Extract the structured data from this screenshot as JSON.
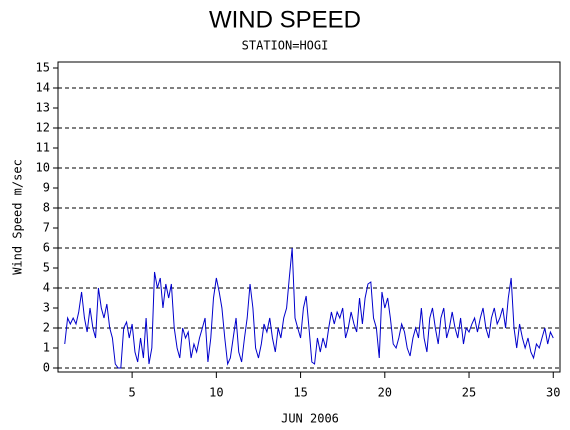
{
  "chart_data": {
    "type": "line",
    "title": "WIND SPEED",
    "subtitle": "STATION=HOGI",
    "x_label": "JUN 2006",
    "y_label": "Wind Speed m/sec",
    "xlim": [
      0.6,
      30.4
    ],
    "xticks": [
      5,
      10,
      15,
      20,
      25,
      30
    ],
    "ylim": [
      -0.2,
      15.3
    ],
    "yticks": [
      0,
      1,
      2,
      3,
      4,
      5,
      6,
      7,
      8,
      9,
      10,
      11,
      12,
      13,
      14,
      15
    ],
    "grid_lines": [
      0,
      2,
      4,
      6,
      8,
      10,
      12,
      14
    ],
    "series": [
      {
        "name": "Wind Speed",
        "color": "#0000cc",
        "x": [
          1,
          1.17,
          1.33,
          1.5,
          1.67,
          1.83,
          2,
          2.17,
          2.33,
          2.5,
          2.67,
          2.83,
          3,
          3.17,
          3.33,
          3.5,
          3.67,
          3.83,
          4,
          4.17,
          4.33,
          4.5,
          4.67,
          4.83,
          5,
          5.17,
          5.33,
          5.5,
          5.67,
          5.83,
          6,
          6.17,
          6.33,
          6.5,
          6.67,
          6.83,
          7,
          7.17,
          7.33,
          7.5,
          7.67,
          7.83,
          8,
          8.17,
          8.33,
          8.5,
          8.67,
          8.83,
          9,
          9.17,
          9.33,
          9.5,
          9.67,
          9.83,
          10,
          10.17,
          10.33,
          10.5,
          10.67,
          10.83,
          11,
          11.17,
          11.33,
          11.5,
          11.67,
          11.83,
          12,
          12.17,
          12.33,
          12.5,
          12.67,
          12.83,
          13,
          13.17,
          13.33,
          13.5,
          13.67,
          13.83,
          14,
          14.17,
          14.33,
          14.5,
          14.67,
          14.83,
          15,
          15.17,
          15.33,
          15.5,
          15.67,
          15.83,
          16,
          16.17,
          16.33,
          16.5,
          16.67,
          16.83,
          17,
          17.17,
          17.33,
          17.5,
          17.67,
          17.83,
          18,
          18.17,
          18.33,
          18.5,
          18.67,
          18.83,
          19,
          19.17,
          19.33,
          19.5,
          19.67,
          19.83,
          20,
          20.17,
          20.33,
          20.5,
          20.67,
          20.83,
          21,
          21.17,
          21.33,
          21.5,
          21.67,
          21.83,
          22,
          22.17,
          22.33,
          22.5,
          22.67,
          22.83,
          23,
          23.17,
          23.33,
          23.5,
          23.67,
          23.83,
          24,
          24.17,
          24.33,
          24.5,
          24.67,
          24.83,
          25,
          25.17,
          25.33,
          25.5,
          25.67,
          25.83,
          26,
          26.17,
          26.33,
          26.5,
          26.67,
          26.83,
          27,
          27.17,
          27.33,
          27.5,
          27.67,
          27.83,
          28,
          28.17,
          28.33,
          28.5,
          28.67,
          28.83,
          29,
          29.17,
          29.33,
          29.5,
          29.67,
          29.83,
          30
        ],
        "values": [
          1.2,
          2.5,
          2.2,
          2.5,
          2.2,
          2.8,
          3.8,
          2.5,
          1.8,
          3.0,
          2.0,
          1.5,
          4.0,
          3.0,
          2.5,
          3.2,
          2.0,
          1.5,
          0.2,
          0.0,
          0.0,
          2.0,
          2.3,
          1.5,
          2.2,
          0.8,
          0.3,
          1.5,
          0.5,
          2.5,
          0.2,
          1.0,
          4.8,
          4.0,
          4.5,
          3.0,
          4.2,
          3.5,
          4.2,
          2.0,
          1.0,
          0.5,
          2.0,
          1.5,
          1.8,
          0.5,
          1.2,
          0.8,
          1.5,
          2.0,
          2.5,
          0.3,
          1.5,
          3.5,
          4.5,
          3.8,
          3.0,
          1.5,
          0.2,
          0.5,
          1.5,
          2.5,
          0.8,
          0.3,
          1.5,
          2.5,
          4.2,
          3.0,
          1.0,
          0.5,
          1.2,
          2.2,
          1.8,
          2.5,
          1.5,
          0.8,
          2.0,
          1.5,
          2.5,
          3.0,
          4.5,
          6.0,
          2.5,
          2.0,
          1.5,
          3.0,
          3.6,
          2.0,
          0.3,
          0.2,
          1.5,
          0.8,
          1.5,
          1.0,
          2.0,
          2.8,
          2.2,
          2.8,
          2.5,
          3.0,
          1.5,
          2.0,
          2.8,
          2.2,
          1.8,
          3.5,
          2.2,
          3.5,
          4.2,
          4.3,
          2.5,
          2.0,
          0.5,
          3.8,
          3.0,
          3.5,
          2.5,
          1.2,
          1.0,
          1.5,
          2.2,
          1.8,
          1.0,
          0.6,
          1.5,
          2.0,
          1.5,
          3.0,
          1.5,
          0.8,
          2.5,
          3.0,
          2.0,
          1.2,
          2.5,
          3.0,
          1.5,
          2.0,
          2.8,
          2.0,
          1.5,
          2.5,
          1.2,
          2.0,
          1.8,
          2.2,
          2.5,
          1.8,
          2.5,
          3.0,
          2.0,
          1.5,
          2.5,
          3.0,
          2.2,
          2.5,
          3.0,
          2.0,
          3.5,
          4.5,
          2.0,
          1.0,
          2.2,
          1.5,
          1.0,
          1.5,
          0.8,
          0.5,
          1.2,
          1.0,
          1.5,
          2.0,
          1.2,
          1.8,
          1.5
        ]
      }
    ]
  }
}
